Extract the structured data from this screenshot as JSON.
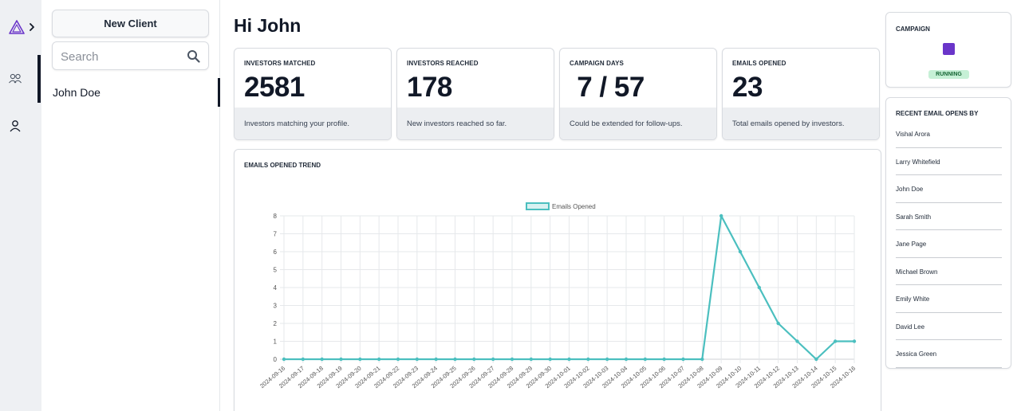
{
  "nav": {
    "icons": [
      "logo-triangle-icon",
      "chevron-right-icon",
      "clients-icon",
      "user-icon"
    ]
  },
  "sidebar": {
    "new_client_label": "New Client",
    "search_placeholder": "Search",
    "clients": [
      {
        "name": "John Doe",
        "selected": true
      }
    ]
  },
  "greeting": "Hi John",
  "stats": [
    {
      "label": "INVESTORS MATCHED",
      "value": "2581",
      "desc": "Investors matching your profile."
    },
    {
      "label": "INVESTORS REACHED",
      "value": "178",
      "desc": "New investors reached so far."
    },
    {
      "label": "CAMPAIGN DAYS",
      "value": " 7 / 57",
      "desc": "Could be extended for follow-ups."
    },
    {
      "label": "EMAILS OPENED",
      "value": "23",
      "desc": "Total emails opened by investors."
    }
  ],
  "campaign": {
    "title": "CAMPAIGN",
    "status": "RUNNING",
    "swatch_color": "#6a35c9"
  },
  "recent_opens": {
    "title": "RECENT EMAIL OPENS BY",
    "names": [
      "Vishal Arora",
      "Larry Whitefield",
      "John Doe",
      "Sarah Smith",
      "Jane Page",
      "Michael Brown",
      "Emily White",
      "David Lee",
      "Jessica Green"
    ]
  },
  "chart_data": {
    "type": "line",
    "title": "EMAILS OPENED TREND",
    "x": [
      "2024-09-16",
      "2024-09-17",
      "2024-09-18",
      "2024-09-19",
      "2024-09-20",
      "2024-09-21",
      "2024-09-22",
      "2024-09-23",
      "2024-09-24",
      "2024-09-25",
      "2024-09-26",
      "2024-09-27",
      "2024-09-28",
      "2024-09-29",
      "2024-09-30",
      "2024-10-01",
      "2024-10-02",
      "2024-10-03",
      "2024-10-04",
      "2024-10-05",
      "2024-10-06",
      "2024-10-07",
      "2024-10-08",
      "2024-10-09",
      "2024-10-10",
      "2024-10-11",
      "2024-10-12",
      "2024-10-13",
      "2024-10-14",
      "2024-10-15",
      "2024-10-16"
    ],
    "series": [
      {
        "name": "Emails Opened",
        "values": [
          0,
          0,
          0,
          0,
          0,
          0,
          0,
          0,
          0,
          0,
          0,
          0,
          0,
          0,
          0,
          0,
          0,
          0,
          0,
          0,
          0,
          0,
          0,
          8,
          6,
          4,
          2,
          1,
          0,
          1,
          1
        ],
        "color": "#4bbfbf"
      }
    ],
    "ylim": [
      0,
      8
    ],
    "yticks": [
      0,
      1,
      2,
      3,
      4,
      5,
      6,
      7,
      8
    ],
    "grid": true,
    "legend": "top-center"
  }
}
